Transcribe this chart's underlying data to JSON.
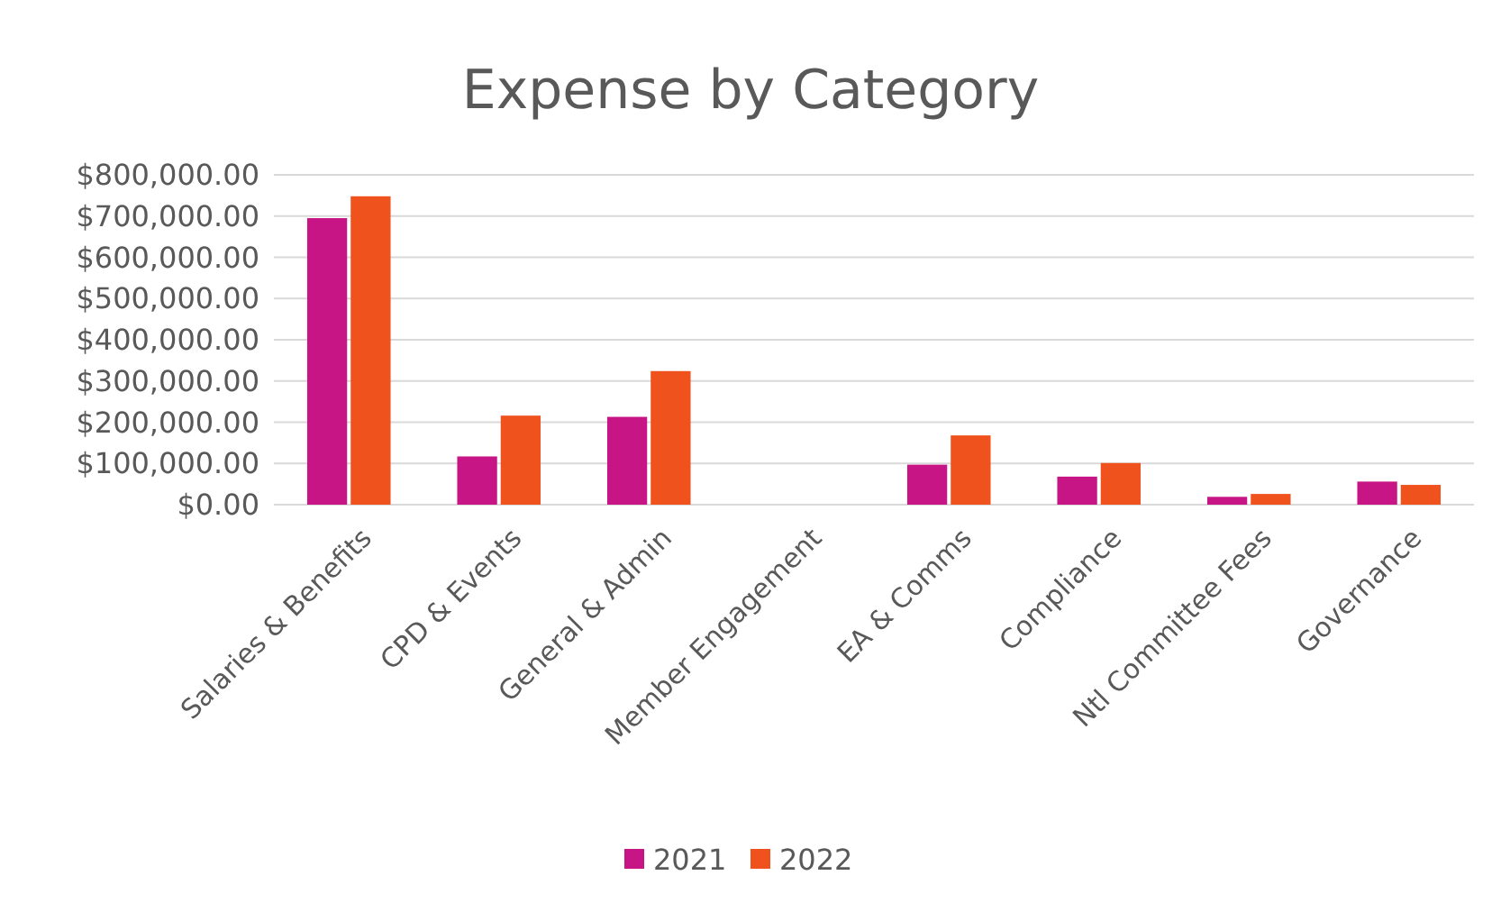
{
  "chart_data": {
    "type": "bar",
    "title": "Expense by Category",
    "categories": [
      "Salaries & Benefits",
      "CPD & Events",
      "General & Admin",
      "Member Engagement",
      "EA & Comms",
      "Compliance",
      "Ntl Committee Fees",
      "Governance"
    ],
    "series": [
      {
        "name": "2021",
        "color": "#c71585",
        "values": [
          695000,
          117000,
          213000,
          0,
          97000,
          68000,
          19000,
          56000
        ]
      },
      {
        "name": "2022",
        "color": "#f0521e",
        "values": [
          748000,
          216000,
          324000,
          0,
          168000,
          101000,
          26000,
          48000
        ]
      }
    ],
    "ylim": [
      0,
      800000
    ],
    "yticks": [
      {
        "value": 0,
        "label": "$0.00"
      },
      {
        "value": 100000,
        "label": "$100,000.00"
      },
      {
        "value": 200000,
        "label": "$200,000.00"
      },
      {
        "value": 300000,
        "label": "$300,000.00"
      },
      {
        "value": 400000,
        "label": "$400,000.00"
      },
      {
        "value": 500000,
        "label": "$500,000.00"
      },
      {
        "value": 600000,
        "label": "$600,000.00"
      },
      {
        "value": 700000,
        "label": "$700,000.00"
      },
      {
        "value": 800000,
        "label": "$800,000.00"
      }
    ],
    "grid": "y",
    "legend": "bottom"
  }
}
